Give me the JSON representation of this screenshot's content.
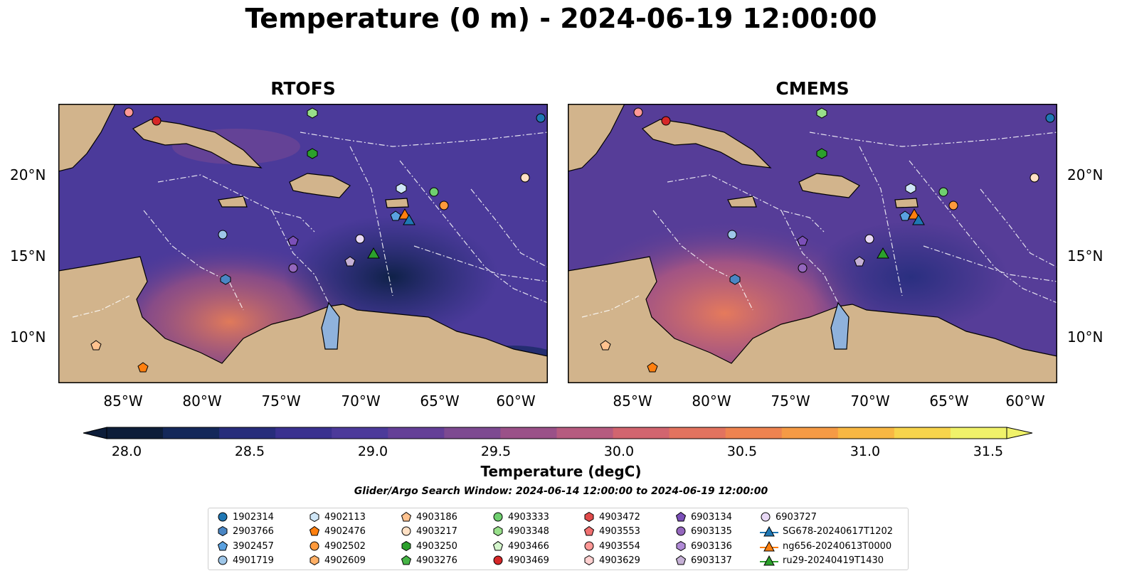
{
  "title": "Temperature (0 m) - 2024-06-19 12:00:00",
  "panels": [
    {
      "title": "RTOFS"
    },
    {
      "title": "CMEMS"
    }
  ],
  "lat_labels": [
    "20°N",
    "15°N",
    "10°N"
  ],
  "lon_labels": [
    "85°W",
    "80°W",
    "75°W",
    "70°W",
    "65°W",
    "60°W"
  ],
  "colorbar": {
    "label": "Temperature (degC)",
    "ticks": [
      "28.0",
      "28.5",
      "29.0",
      "29.5",
      "30.0",
      "30.5",
      "31.0",
      "31.5"
    ],
    "colors": [
      "#0d1d39",
      "#14285a",
      "#272d7b",
      "#3a318f",
      "#4c3a9a",
      "#643f97",
      "#7d4a91",
      "#9a5188",
      "#b65b7f",
      "#d1656f",
      "#e2735f",
      "#ee8350",
      "#f59a45",
      "#f8b743",
      "#f7d44c",
      "#f0f26a"
    ]
  },
  "search_window": "Glider/Argo Search Window: 2024-06-14 12:00:00 to 2024-06-19 12:00:00",
  "legend": [
    {
      "label": "1902314",
      "marker": "circle",
      "color": "#1f77b4"
    },
    {
      "label": "2903766",
      "marker": "hexagon",
      "color": "#4a86c4"
    },
    {
      "label": "3902457",
      "marker": "pentagon",
      "color": "#5aa1e0"
    },
    {
      "label": "4901719",
      "marker": "circle",
      "color": "#9ec6e8"
    },
    {
      "label": "4902113",
      "marker": "hexagon",
      "color": "#cfe6f7"
    },
    {
      "label": "4902476",
      "marker": "pentagon",
      "color": "#ff7f0e"
    },
    {
      "label": "4902502",
      "marker": "circle",
      "color": "#ff9a3c"
    },
    {
      "label": "4902609",
      "marker": "hexagon",
      "color": "#ffb066"
    },
    {
      "label": "4903186",
      "marker": "pentagon",
      "color": "#ffc28f"
    },
    {
      "label": "4903217",
      "marker": "circle",
      "color": "#ffe0c4"
    },
    {
      "label": "4903250",
      "marker": "hexagon",
      "color": "#2ca02c"
    },
    {
      "label": "4903276",
      "marker": "pentagon",
      "color": "#46b446"
    },
    {
      "label": "4903333",
      "marker": "circle",
      "color": "#6fcf6f"
    },
    {
      "label": "4903348",
      "marker": "hexagon",
      "color": "#98df8a"
    },
    {
      "label": "4903466",
      "marker": "pentagon",
      "color": "#d4f5cc"
    },
    {
      "label": "4903469",
      "marker": "circle",
      "color": "#d62728"
    },
    {
      "label": "4903472",
      "marker": "hexagon",
      "color": "#e04a4a"
    },
    {
      "label": "4903553",
      "marker": "pentagon",
      "color": "#f07070"
    },
    {
      "label": "4903554",
      "marker": "circle",
      "color": "#ff9896"
    },
    {
      "label": "4903629",
      "marker": "hexagon",
      "color": "#ffd0d0"
    },
    {
      "label": "6903134",
      "marker": "pentagon",
      "color": "#7b4fb8"
    },
    {
      "label": "6903135",
      "marker": "circle",
      "color": "#9467bd"
    },
    {
      "label": "6903136",
      "marker": "hexagon",
      "color": "#b08ad6"
    },
    {
      "label": "6903137",
      "marker": "pentagon",
      "color": "#c5b0d5"
    },
    {
      "label": "6903727",
      "marker": "circle",
      "color": "#e8d8f5"
    },
    {
      "label": "SG678-20240617T1202",
      "marker": "triangle",
      "color": "#1f77b4"
    },
    {
      "label": "ng656-20240613T0000",
      "marker": "triangle",
      "color": "#ff7f0e"
    },
    {
      "label": "ru29-20240419T1430",
      "marker": "triangle",
      "color": "#2ca02c"
    }
  ]
}
